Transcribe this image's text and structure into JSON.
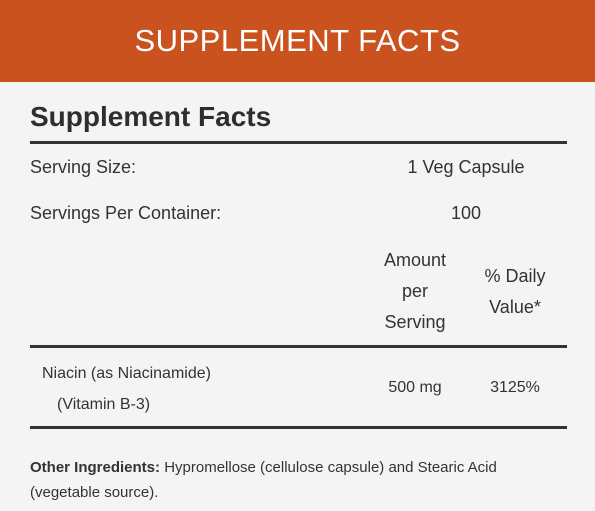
{
  "header": {
    "title": "SUPPLEMENT FACTS"
  },
  "panel": {
    "title": "Supplement Facts",
    "serving_size": {
      "label": "Serving Size:",
      "value": "1 Veg Capsule"
    },
    "servings_per_container": {
      "label": "Servings Per Container:",
      "value": "100"
    },
    "columns": {
      "amount": "Amount per Serving",
      "daily_value": "% Daily Value*"
    },
    "rows": [
      {
        "name": "Niacin (as Niacinamide)",
        "subname": "(Vitamin B-3)",
        "amount": "500 mg",
        "daily_value": "3125%"
      }
    ],
    "other_ingredients": {
      "label": "Other Ingredients:",
      "text": "Hypromellose (cellulose capsule) and Stearic Acid (vegetable source)."
    }
  }
}
